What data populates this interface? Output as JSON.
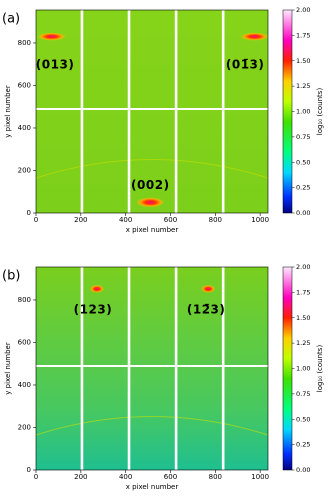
{
  "chart_data": [
    {
      "type": "image",
      "panel_label": "(a)",
      "xlabel": "x pixel number",
      "ylabel": "y pixel number",
      "xlim": [
        0,
        1035
      ],
      "ylim": [
        0,
        955
      ],
      "xticks": [
        0,
        200,
        400,
        600,
        800,
        1000
      ],
      "yticks": [
        0,
        200,
        400,
        600,
        800
      ],
      "spots": [
        {
          "x": 70,
          "y": 830
        },
        {
          "x": 975,
          "y": 830
        },
        {
          "x": 510,
          "y": 50
        }
      ],
      "annotations": [
        {
          "text": "(013)",
          "x": 85,
          "y": 696
        },
        {
          "text": "(01̄3)",
          "x": 933,
          "y": 696
        },
        {
          "text": "(002)",
          "x": 510,
          "y": 130
        }
      ],
      "colorbar": {
        "label": "log₁₀ (counts)",
        "lim": [
          0,
          2
        ],
        "ticks": [
          {
            "value": 0,
            "label": "0.00"
          },
          {
            "value": 0.25,
            "label": "0.25"
          },
          {
            "value": 0.5,
            "label": "0.50"
          },
          {
            "value": 0.75,
            "label": "0.75"
          },
          {
            "value": 1,
            "label": "1.00"
          },
          {
            "value": 1.25,
            "label": "1.25"
          },
          {
            "value": 1.5,
            "label": "1.50"
          },
          {
            "value": 1.75,
            "label": "1.75"
          },
          {
            "value": 2,
            "label": "2.00"
          }
        ]
      }
    },
    {
      "type": "image",
      "panel_label": "(b)",
      "xlabel": "x pixel number",
      "ylabel": "y pixel number",
      "xlim": [
        0,
        1035
      ],
      "ylim": [
        0,
        955
      ],
      "xticks": [
        0,
        200,
        400,
        600,
        800,
        1000
      ],
      "yticks": [
        0,
        200,
        400,
        600,
        800
      ],
      "spots": [
        {
          "x": 272,
          "y": 852
        },
        {
          "x": 768,
          "y": 852
        }
      ],
      "annotations": [
        {
          "text": "(123)",
          "x": 254,
          "y": 753
        },
        {
          "text": "(12̄3)",
          "x": 759,
          "y": 753
        }
      ],
      "colorbar": {
        "label": "log₁₀ (counts)",
        "lim": [
          0,
          2
        ],
        "ticks": [
          {
            "value": 0,
            "label": "0.00"
          },
          {
            "value": 0.25,
            "label": "0.25"
          },
          {
            "value": 0.5,
            "label": "0.50"
          },
          {
            "value": 0.75,
            "label": "0.75"
          },
          {
            "value": 1,
            "label": "1.00"
          },
          {
            "value": 1.25,
            "label": "1.25"
          },
          {
            "value": 1.5,
            "label": "1.50"
          },
          {
            "value": 1.75,
            "label": "1.75"
          },
          {
            "value": 2,
            "label": "2.00"
          }
        ]
      }
    }
  ]
}
